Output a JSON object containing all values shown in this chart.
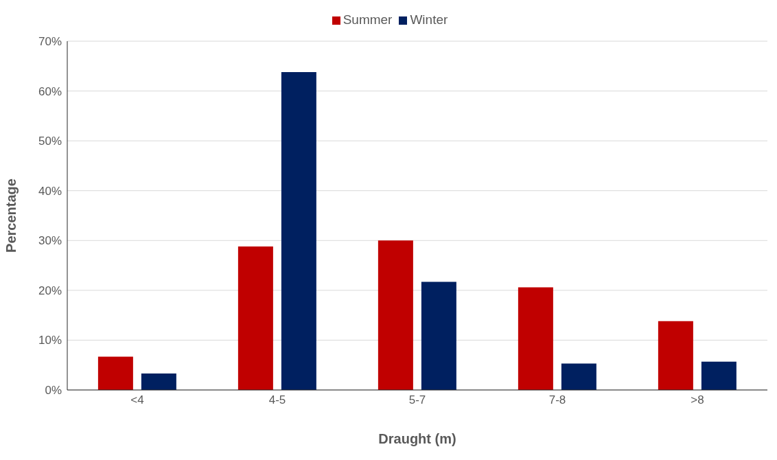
{
  "chart_data": {
    "type": "bar",
    "xlabel": "Draught (m)",
    "ylabel": "Percentage",
    "categories": [
      "<4",
      "4-5",
      "5-7",
      "7-8",
      ">8"
    ],
    "series": [
      {
        "name": "Summer",
        "color": "#c00000",
        "values": [
          6.7,
          28.8,
          30.0,
          20.6,
          13.8
        ]
      },
      {
        "name": "Winter",
        "color": "#002060",
        "values": [
          3.3,
          63.8,
          21.7,
          5.3,
          5.7
        ]
      }
    ],
    "ylim": [
      0,
      70
    ],
    "yticks": [
      {
        "value": 0,
        "label": "0%"
      },
      {
        "value": 10,
        "label": "10%"
      },
      {
        "value": 20,
        "label": "20%"
      },
      {
        "value": 30,
        "label": "30%"
      },
      {
        "value": 40,
        "label": "40%"
      },
      {
        "value": 50,
        "label": "50%"
      },
      {
        "value": 60,
        "label": "60%"
      },
      {
        "value": 70,
        "label": "70%"
      }
    ],
    "grid": "y",
    "legend": "top"
  }
}
